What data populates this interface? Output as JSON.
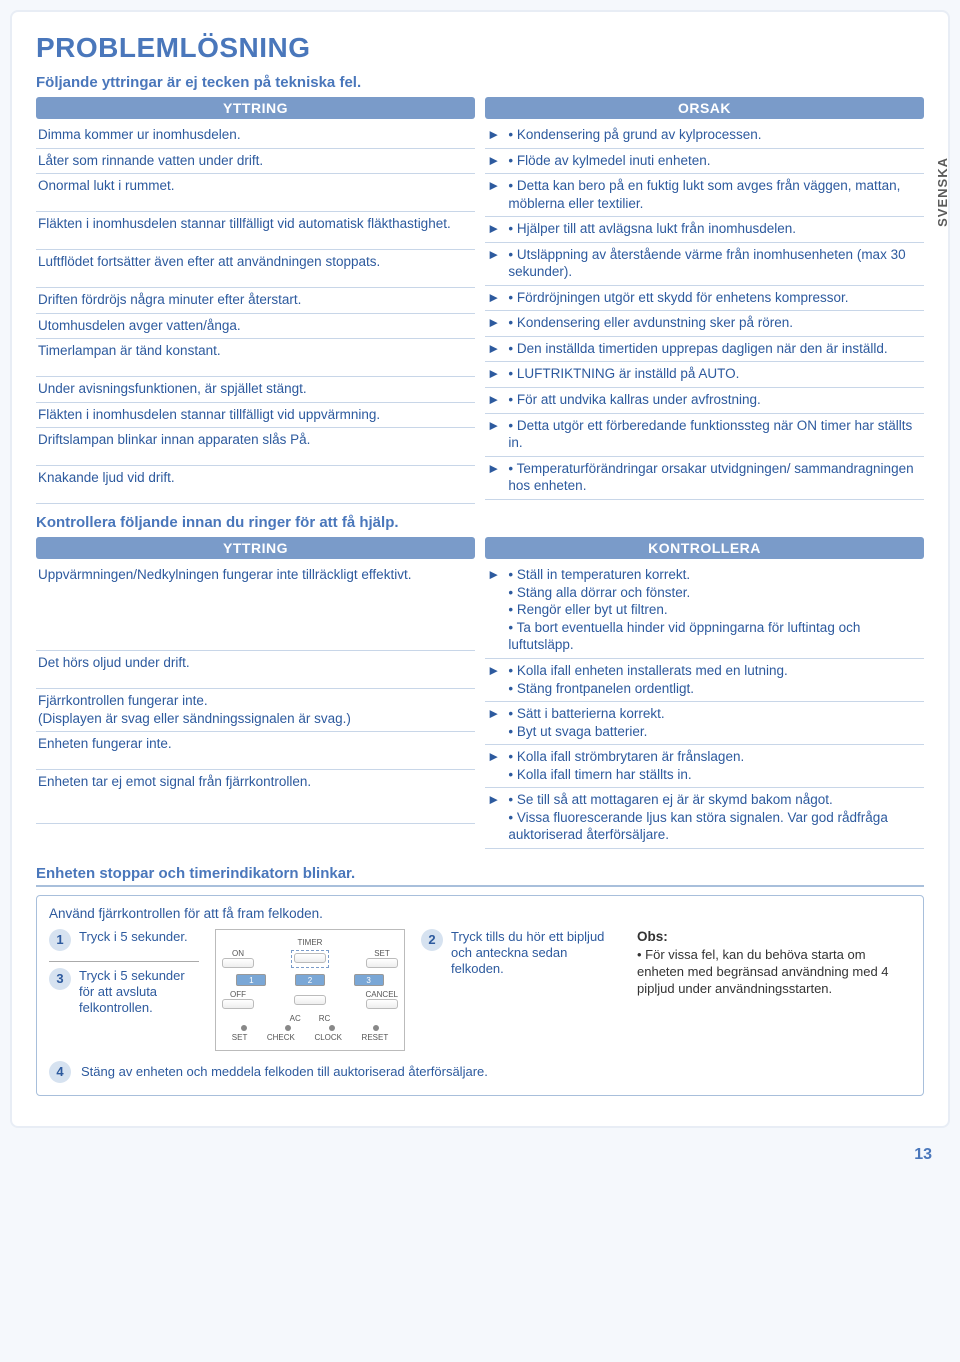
{
  "title": "PROBLEMLÖSNING",
  "subtitle1": "Följande yttringar är ej tecken på tekniska fel.",
  "sideTab": "SVENSKA",
  "headers": {
    "yttring": "YTTRING",
    "orsak": "ORSAK",
    "kontrollera": "KONTROLLERA"
  },
  "sec1": {
    "left": [
      "Dimma kommer ur inomhusdelen.",
      "Låter som rinnande vatten under drift.",
      "Onormal lukt i rummet.",
      "Fläkten i inomhusdelen stannar tillfälligt vid automatisk fläkthastighet.",
      "Luftflödet fortsätter även efter att användningen stoppats.",
      "Driften fördröjs några minuter efter återstart.",
      "Utomhusdelen avger vatten/ånga.",
      "Timerlampan är tänd konstant.",
      "Under avisningsfunktionen, är spjället stängt.",
      "Fläkten i inomhusdelen stannar tillfälligt vid uppvärmning.",
      "Driftslampan blinkar innan apparaten slås På.",
      "Knakande ljud vid drift."
    ],
    "right": [
      [
        "Kondensering på grund av kylprocessen."
      ],
      [
        "Flöde av kylmedel inuti enheten."
      ],
      [
        "Detta kan bero på en fuktig lukt som avges från väggen, mattan, möblerna eller textilier."
      ],
      [
        "Hjälper till att avlägsna lukt från inomhusdelen."
      ],
      [
        "Utsläppning av återstående värme från inomhusenheten (max 30 sekunder)."
      ],
      [
        "Fördröjningen utgör ett skydd för enhetens kompressor."
      ],
      [
        "Kondensering eller avdunstning sker på rören."
      ],
      [
        "Den inställda timertiden upprepas dagligen när den är inställd."
      ],
      [
        "LUFTRIKTNING är inställd på AUTO."
      ],
      [
        "För att undvika kallras under avfrostning."
      ],
      [
        "Detta utgör ett förberedande funktionssteg när ON timer har ställts in."
      ],
      [
        "Temperaturförändringar orsakar utvidgningen/ sammandragningen hos enheten."
      ]
    ]
  },
  "sec2title": "Kontrollera följande innan du ringer för att få hjälp.",
  "sec2": {
    "left": [
      "Uppvärmningen/Nedkylningen fungerar inte tillräckligt effektivt.",
      "Det hörs oljud under drift.",
      "Fjärrkontrollen fungerar inte.\n(Displayen är svag eller sändningssignalen är svag.)",
      "Enheten fungerar inte.",
      "Enheten tar ej emot signal från fjärrkontrollen."
    ],
    "right": [
      [
        "Ställ in temperaturen korrekt.",
        "Stäng alla dörrar och fönster.",
        "Rengör eller byt ut filtren.",
        "Ta bort eventuella hinder vid öppningarna för luftintag och luftutsläpp."
      ],
      [
        "Kolla ifall enheten installerats med en lutning.",
        "Stäng frontpanelen ordentligt."
      ],
      [
        "Sätt i batterierna korrekt.",
        "Byt ut svaga batterier."
      ],
      [
        "Kolla ifall strömbrytaren är frånslagen.",
        "Kolla ifall timern har ställts in."
      ],
      [
        "Se till så att mottagaren ej är är skymd bakom något.",
        "Vissa fluorescerande ljus kan störa signalen. Var god rådfråga auktoriserad återförsäljare."
      ]
    ]
  },
  "sec3title": "Enheten stoppar och timerindikatorn blinkar.",
  "error": {
    "intro": "Använd fjärrkontrollen för att få fram felkoden.",
    "step1": "Tryck i 5 sekunder.",
    "step2": "Tryck tills du hör ett bipljud och anteckna sedan felkoden.",
    "step3": "Tryck i 5 sekunder för att avsluta felkontrollen.",
    "step4": "Stäng av enheten och meddela felkoden till auktoriserad återförsäljare.",
    "obsTitle": "Obs:",
    "obsText": "För vissa fel, kan du behöva starta om enheten med begränsad användning med 4 pipljud under användningsstarten.",
    "remote": {
      "timer": "TIMER",
      "on": "ON",
      "off": "OFF",
      "set": "SET",
      "cancel": "CANCEL",
      "b1": "1",
      "b2": "2",
      "b3": "3",
      "setL": "SET",
      "check": "CHECK",
      "clock": "CLOCK",
      "reset": "RESET",
      "ac": "AC",
      "rc": "RC"
    }
  },
  "pageNum": "13"
}
